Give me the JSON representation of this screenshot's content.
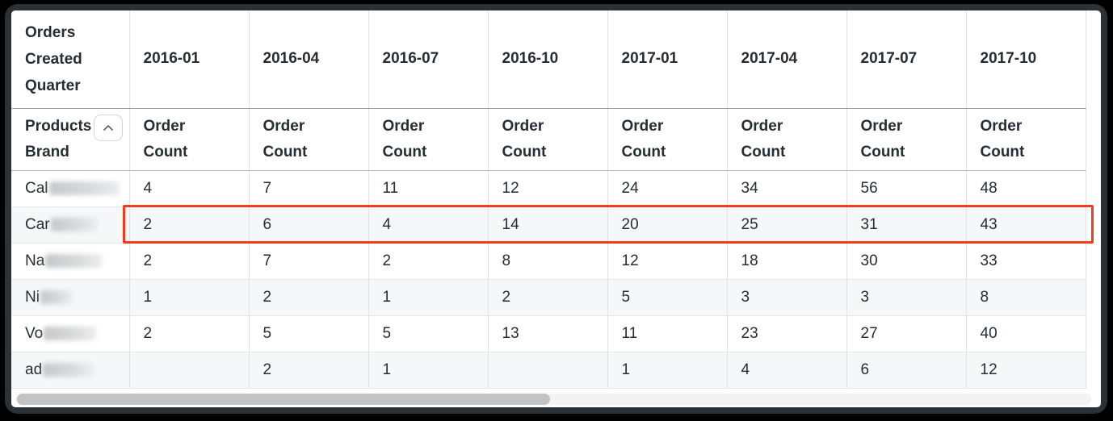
{
  "table": {
    "corner_header": "Orders Created Quarter",
    "row_dimension_label": "Products Brand",
    "sort_icon": "chevron-up-icon",
    "measure_label": "Order Count",
    "quarters": [
      "2016-01",
      "2016-04",
      "2016-07",
      "2016-10",
      "2017-01",
      "2017-04",
      "2017-07",
      "2017-10"
    ],
    "rows": [
      {
        "brand_prefix": "Cal",
        "name_redacted": true,
        "blur_width": 87,
        "highlighted": false,
        "values": [
          "4",
          "7",
          "11",
          "12",
          "24",
          "34",
          "56",
          "48"
        ]
      },
      {
        "brand_prefix": "Car",
        "name_redacted": true,
        "blur_width": 58,
        "highlighted": true,
        "values": [
          "2",
          "6",
          "4",
          "14",
          "20",
          "25",
          "31",
          "43"
        ]
      },
      {
        "brand_prefix": "Na",
        "name_redacted": true,
        "blur_width": 70,
        "highlighted": false,
        "values": [
          "2",
          "7",
          "2",
          "8",
          "12",
          "18",
          "30",
          "33"
        ]
      },
      {
        "brand_prefix": "Ni",
        "name_redacted": true,
        "blur_width": 40,
        "highlighted": false,
        "values": [
          "1",
          "2",
          "1",
          "2",
          "5",
          "3",
          "3",
          "8"
        ]
      },
      {
        "brand_prefix": "Vo",
        "name_redacted": true,
        "blur_width": 65,
        "highlighted": false,
        "values": [
          "2",
          "5",
          "5",
          "13",
          "11",
          "23",
          "27",
          "40"
        ]
      },
      {
        "brand_prefix": "ad",
        "name_redacted": true,
        "blur_width": 63,
        "highlighted": false,
        "values": [
          "",
          "2",
          "1",
          "",
          "1",
          "4",
          "6",
          "12"
        ]
      }
    ],
    "highlight_color": "#f43b1c"
  },
  "colors": {
    "header_text": "#262d33",
    "cell_text": "#2f363c",
    "window_frame": "#2b3134",
    "row_stripe": "#f6f7f8",
    "border_light": "#e0e2e3",
    "border_medium": "#9ca1a6",
    "highlight": "#f43b1c",
    "scrollbar_thumb": "#c2c3c5"
  },
  "scrollbar": {
    "orientation": "horizontal"
  }
}
